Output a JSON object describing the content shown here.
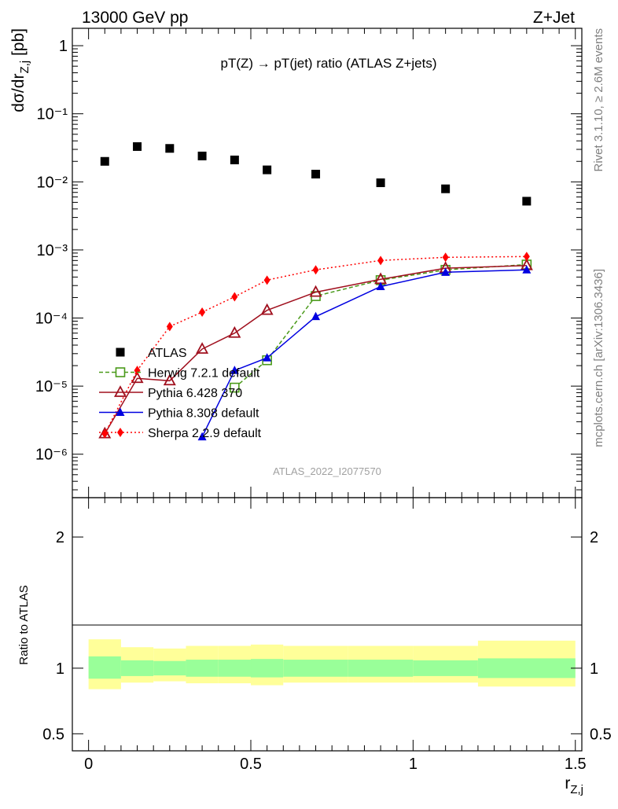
{
  "header": {
    "left_title": "13000 GeV pp",
    "right_title": "Z+Jet"
  },
  "side_labels": {
    "rivet": "Rivet 3.1.10, ≥ 2.6M events",
    "mcplots": "mcplots.cern.ch [arXiv:1306.3436]"
  },
  "chart_data": [
    {
      "type": "scatter",
      "title": "pT(Z) → pT(jet) ratio (ATLAS Z+jets)",
      "analysis_id": "ATLAS_2022_I2077570",
      "ylabel": "dσ/dr_{Z,j} [pb]",
      "yscale": "log",
      "ylim": [
        2.3e-07,
        1.8
      ],
      "xlim": [
        -0.05,
        1.52
      ],
      "y_tick_labels": [
        "10⁻⁶",
        "10⁻⁵",
        "10⁻⁴",
        "10⁻³",
        "10⁻²",
        "10⁻¹",
        "1"
      ],
      "y_tick_values": [
        1e-06,
        1e-05,
        0.0001,
        0.001,
        0.01,
        0.1,
        1
      ],
      "series": [
        {
          "name": "ATLAS",
          "color": "#000000",
          "marker": "square",
          "x": [
            0.05,
            0.15,
            0.25,
            0.35,
            0.45,
            0.55,
            0.7,
            0.9,
            1.1,
            1.35
          ],
          "y": [
            0.02,
            0.033,
            0.031,
            0.024,
            0.021,
            0.015,
            0.013,
            0.0097,
            0.0079,
            0.0052
          ]
        },
        {
          "name": "Herwig 7.2.1 default",
          "color": "#4a9a1a",
          "marker": "open-square",
          "line": "dashed",
          "x": [
            0.45,
            0.55,
            0.7,
            0.9,
            1.1,
            1.35
          ],
          "y": [
            9.5e-06,
            2.4e-05,
            0.00021,
            0.00036,
            0.00051,
            0.00061
          ]
        },
        {
          "name": "Pythia 6.428 370",
          "color": "#a0101e",
          "marker": "open-triangle",
          "line": "solid",
          "x": [
            0.05,
            0.15,
            0.25,
            0.35,
            0.45,
            0.55,
            0.7,
            0.9,
            1.1,
            1.35
          ],
          "y": [
            2e-06,
            1.3e-05,
            1.2e-05,
            3.5e-05,
            6e-05,
            0.00013,
            0.00024,
            0.00037,
            0.00054,
            0.00059
          ]
        },
        {
          "name": "Pythia 8.308 default",
          "color": "#0000e0",
          "marker": "triangle",
          "line": "solid",
          "x": [
            0.35,
            0.45,
            0.55,
            0.7,
            0.9,
            1.1,
            1.35
          ],
          "y": [
            1.8e-06,
            1.7e-05,
            2.6e-05,
            0.000105,
            0.00029,
            0.00047,
            0.00051
          ]
        },
        {
          "name": "Sherpa 2.2.9 default",
          "color": "#ff0000",
          "marker": "diamond",
          "line": "dotted",
          "x": [
            0.05,
            0.15,
            0.25,
            0.35,
            0.45,
            0.55,
            0.7,
            0.9,
            1.1,
            1.35
          ],
          "y": [
            2e-06,
            1.7e-05,
            7.5e-05,
            0.000122,
            0.000205,
            0.00036,
            0.00051,
            0.0007,
            0.00078,
            0.0008
          ]
        }
      ]
    },
    {
      "type": "area",
      "ylabel": "Ratio to ATLAS",
      "xlabel": "r_{Z,j}",
      "ylim": [
        0.37,
        2.3
      ],
      "xlim": [
        -0.05,
        1.52
      ],
      "y_tick_labels": [
        "0.5",
        "1",
        "2"
      ],
      "y_tick_values": [
        0.5,
        1,
        2
      ],
      "x_tick_labels": [
        "0",
        "0.5",
        "1",
        "1.5"
      ],
      "x_tick_values": [
        0,
        0.5,
        1,
        1.5
      ],
      "bin_edges": [
        0,
        0.1,
        0.2,
        0.3,
        0.4,
        0.5,
        0.6,
        0.8,
        1.0,
        1.2,
        1.5
      ],
      "band_colors": {
        "inner": "#99ff99",
        "outer": "#ffff99"
      },
      "inner_band": {
        "low": [
          0.92,
          0.94,
          0.945,
          0.935,
          0.935,
          0.93,
          0.935,
          0.935,
          0.94,
          0.925
        ],
        "high": [
          1.09,
          1.06,
          1.055,
          1.065,
          1.065,
          1.07,
          1.065,
          1.065,
          1.06,
          1.075
        ]
      },
      "outer_band": {
        "low": [
          0.84,
          0.89,
          0.9,
          0.885,
          0.885,
          0.87,
          0.89,
          0.89,
          0.89,
          0.86
        ],
        "high": [
          1.22,
          1.16,
          1.15,
          1.17,
          1.17,
          1.18,
          1.17,
          1.17,
          1.17,
          1.21
        ]
      }
    }
  ]
}
